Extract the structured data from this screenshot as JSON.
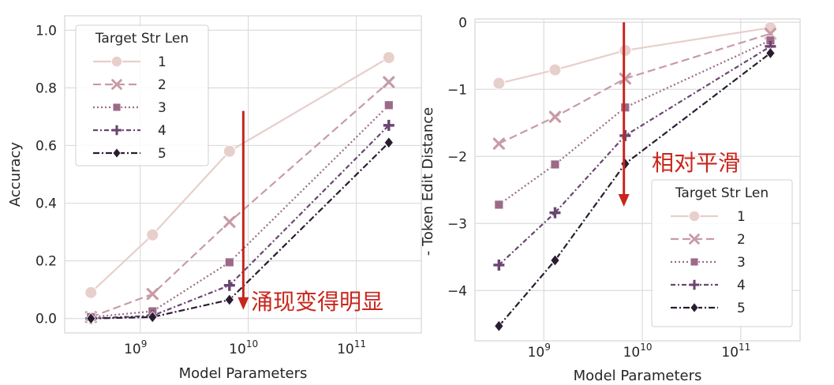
{
  "colors": {
    "series": [
      "#e7cfcc",
      "#c79ba6",
      "#9c6a88",
      "#6a4570",
      "#2a1c30"
    ],
    "grid": "#dcdcdc",
    "arrow": "#c8261c"
  },
  "markers": [
    "circle",
    "x",
    "square",
    "plus",
    "diamond"
  ],
  "dashes": [
    "none",
    "10 5",
    "2 3",
    "6 3 2 3",
    "8 3 2 3"
  ],
  "chart_data": [
    {
      "type": "line",
      "xlabel": "Model Parameters",
      "ylabel": "Accuracy",
      "xscale": "log",
      "xlim": [
        200000000.0,
        400000000000.0
      ],
      "ylim": [
        -0.05,
        1.05
      ],
      "yticks": [
        0.0,
        0.2,
        0.4,
        0.6,
        0.8,
        1.0
      ],
      "ytick_labels": [
        "0.0",
        "0.2",
        "0.4",
        "0.6",
        "0.8",
        "1.0"
      ],
      "xticks": [
        1000000000.0,
        10000000000.0,
        100000000000.0
      ],
      "xtick_labels": [
        {
          "base": "10",
          "exp": "9"
        },
        {
          "base": "10",
          "exp": "10"
        },
        {
          "base": "10",
          "exp": "11"
        }
      ],
      "x": [
        350000000.0,
        1300000000.0,
        6700000000.0,
        200000000000.0
      ],
      "series": [
        {
          "name": "1",
          "values": [
            0.09,
            0.29,
            0.58,
            0.905
          ]
        },
        {
          "name": "2",
          "values": [
            0.005,
            0.085,
            0.335,
            0.82
          ]
        },
        {
          "name": "3",
          "values": [
            0.005,
            0.025,
            0.195,
            0.74
          ]
        },
        {
          "name": "4",
          "values": [
            0.0,
            0.01,
            0.115,
            0.67
          ]
        },
        {
          "name": "5",
          "values": [
            0.0,
            0.005,
            0.065,
            0.61
          ]
        }
      ],
      "legend": {
        "title": "Target Str Len",
        "position": "upper-left"
      },
      "annotation": {
        "text": "涌现变得明显",
        "arrow_x": 9000000000.0,
        "arrow_from": 0.72,
        "arrow_to": 0.03
      }
    },
    {
      "type": "line",
      "xlabel": "Model Parameters",
      "ylabel": "- Token Edit Distance",
      "xscale": "log",
      "xlim": [
        200000000.0,
        400000000000.0
      ],
      "ylim": [
        -4.75,
        0.05
      ],
      "yticks": [
        0,
        -1,
        -2,
        -3,
        -4
      ],
      "ytick_labels": [
        "0",
        "−1",
        "−2",
        "−3",
        "−4"
      ],
      "xticks": [
        1000000000.0,
        10000000000.0,
        100000000000.0
      ],
      "xtick_labels": [
        {
          "base": "10",
          "exp": "9"
        },
        {
          "base": "10",
          "exp": "10"
        },
        {
          "base": "10",
          "exp": "11"
        }
      ],
      "x": [
        350000000.0,
        1300000000.0,
        6700000000.0,
        200000000000.0
      ],
      "series": [
        {
          "name": "1",
          "values": [
            -0.91,
            -0.71,
            -0.42,
            -0.08
          ]
        },
        {
          "name": "2",
          "values": [
            -1.81,
            -1.41,
            -0.84,
            -0.17
          ]
        },
        {
          "name": "3",
          "values": [
            -2.72,
            -2.12,
            -1.27,
            -0.27
          ]
        },
        {
          "name": "4",
          "values": [
            -3.62,
            -2.84,
            -1.69,
            -0.36
          ]
        },
        {
          "name": "5",
          "values": [
            -4.53,
            -3.55,
            -2.11,
            -0.46
          ]
        }
      ],
      "legend": {
        "title": "Target Str Len",
        "position": "lower-right"
      },
      "annotation": {
        "text": "相对平滑",
        "arrow_x": 6500000000.0,
        "arrow_from": 0.0,
        "arrow_to": -2.75
      }
    }
  ]
}
